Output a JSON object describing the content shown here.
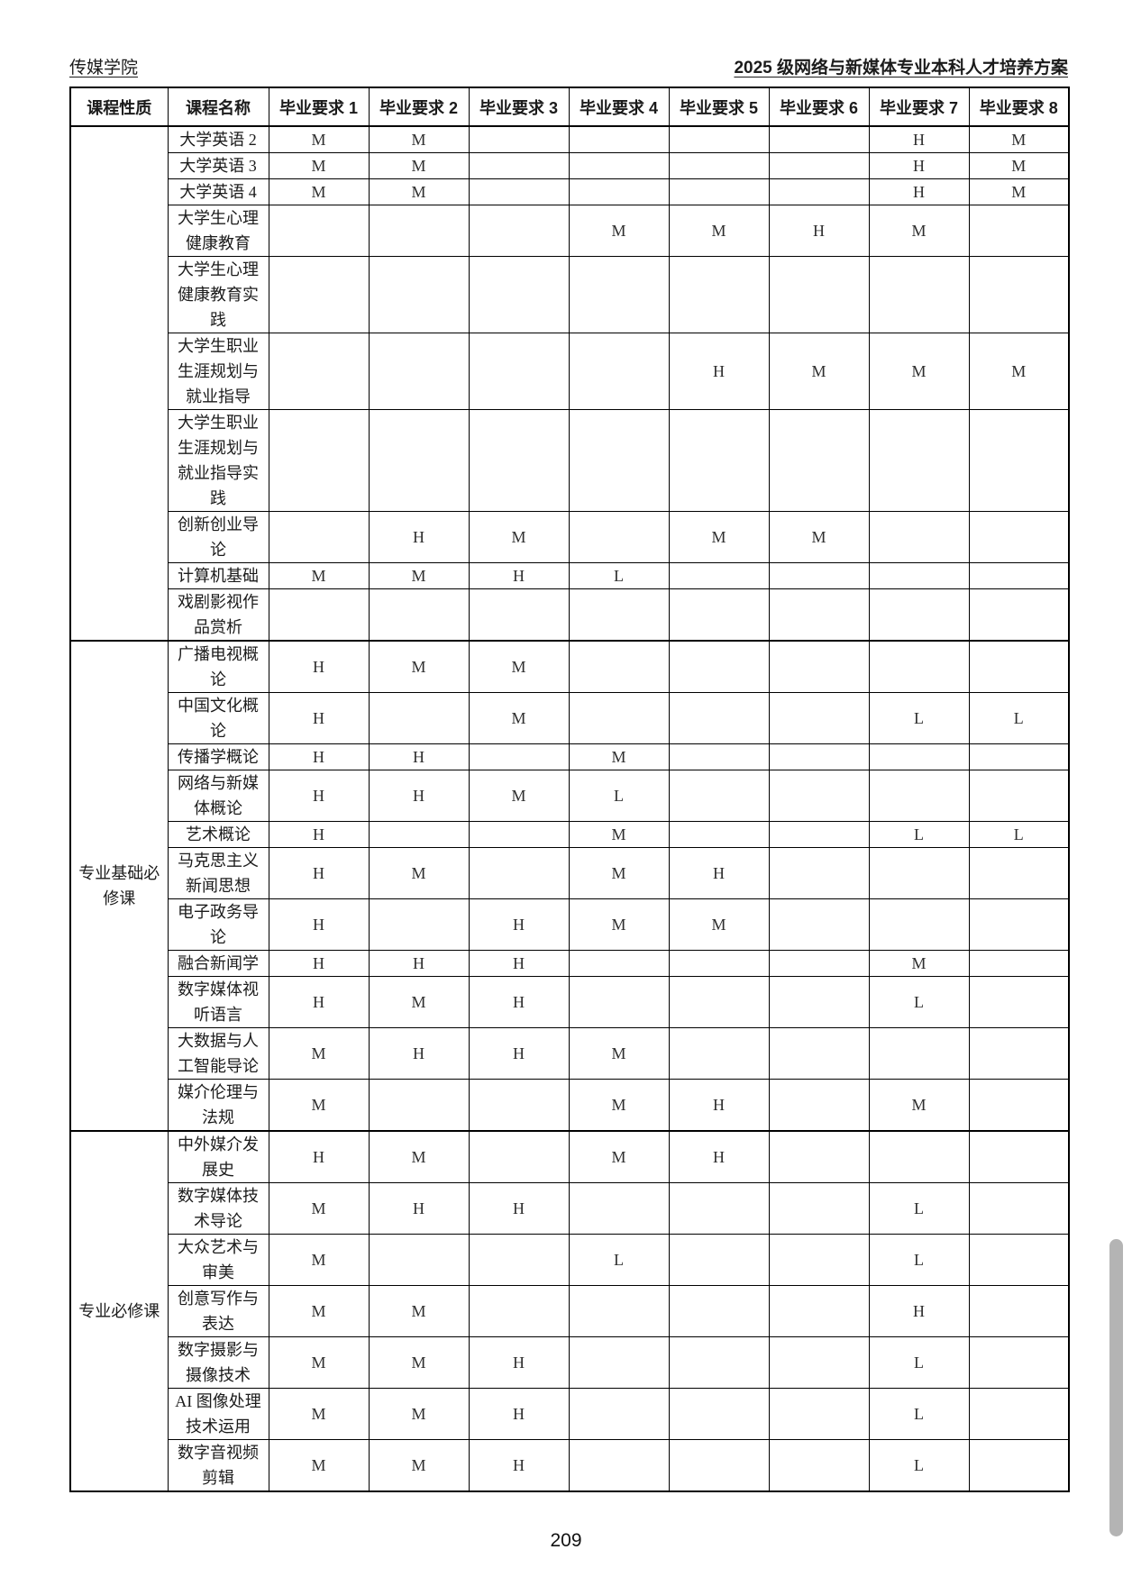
{
  "page": {
    "header_left": "传媒学院",
    "header_right": "2025 级网络与新媒体专业本科人才培养方案",
    "page_number": "209"
  },
  "table": {
    "col_headers": [
      "课程性质",
      "课程名称",
      "毕业要求 1",
      "毕业要求 2",
      "毕业要求 3",
      "毕业要求 4",
      "毕业要求 5",
      "毕业要求 6",
      "毕业要求 7",
      "毕业要求 8"
    ],
    "groups": [
      {
        "nature": "",
        "courses": [
          {
            "name": "大学英语 2",
            "reqs": [
              "M",
              "M",
              "",
              "",
              "",
              "",
              "H",
              "M"
            ]
          },
          {
            "name": "大学英语 3",
            "reqs": [
              "M",
              "M",
              "",
              "",
              "",
              "",
              "H",
              "M"
            ]
          },
          {
            "name": "大学英语 4",
            "reqs": [
              "M",
              "M",
              "",
              "",
              "",
              "",
              "H",
              "M"
            ]
          },
          {
            "name": "大学生心理健康教育",
            "reqs": [
              "",
              "",
              "",
              "M",
              "M",
              "H",
              "M",
              ""
            ]
          },
          {
            "name": "大学生心理健康教育实践",
            "reqs": [
              "",
              "",
              "",
              "",
              "",
              "",
              "",
              ""
            ]
          },
          {
            "name": "大学生职业生涯规划与就业指导",
            "reqs": [
              "",
              "",
              "",
              "",
              "H",
              "M",
              "M",
              "M"
            ]
          },
          {
            "name": "大学生职业生涯规划与就业指导实践",
            "reqs": [
              "",
              "",
              "",
              "",
              "",
              "",
              "",
              ""
            ]
          },
          {
            "name": "创新创业导论",
            "reqs": [
              "",
              "H",
              "M",
              "",
              "M",
              "M",
              "",
              ""
            ]
          },
          {
            "name": "计算机基础",
            "reqs": [
              "M",
              "M",
              "H",
              "L",
              "",
              "",
              "",
              ""
            ]
          },
          {
            "name": "戏剧影视作品赏析",
            "reqs": [
              "",
              "",
              "",
              "",
              "",
              "",
              "",
              ""
            ]
          }
        ]
      },
      {
        "nature": "专业基础必修课",
        "courses": [
          {
            "name": "广播电视概论",
            "reqs": [
              "H",
              "M",
              "M",
              "",
              "",
              "",
              "",
              ""
            ]
          },
          {
            "name": "中国文化概论",
            "reqs": [
              "H",
              "",
              "M",
              "",
              "",
              "",
              "L",
              "L"
            ]
          },
          {
            "name": "传播学概论",
            "reqs": [
              "H",
              "H",
              "",
              "M",
              "",
              "",
              "",
              ""
            ]
          },
          {
            "name": "网络与新媒体概论",
            "reqs": [
              "H",
              "H",
              "M",
              "L",
              "",
              "",
              "",
              ""
            ]
          },
          {
            "name": "艺术概论",
            "reqs": [
              "H",
              "",
              "",
              "M",
              "",
              "",
              "L",
              "L"
            ]
          },
          {
            "name": "马克思主义新闻思想",
            "reqs": [
              "H",
              "M",
              "",
              "M",
              "H",
              "",
              "",
              ""
            ]
          },
          {
            "name": "电子政务导论",
            "reqs": [
              "H",
              "",
              "H",
              "M",
              "M",
              "",
              "",
              ""
            ]
          },
          {
            "name": "融合新闻学",
            "reqs": [
              "H",
              "H",
              "H",
              "",
              "",
              "",
              "M",
              ""
            ]
          },
          {
            "name": "数字媒体视听语言",
            "reqs": [
              "H",
              "M",
              "H",
              "",
              "",
              "",
              "L",
              ""
            ]
          },
          {
            "name": "大数据与人工智能导论",
            "reqs": [
              "M",
              "H",
              "H",
              "M",
              "",
              "",
              "",
              ""
            ]
          },
          {
            "name": "媒介伦理与法规",
            "reqs": [
              "M",
              "",
              "",
              "M",
              "H",
              "",
              "M",
              ""
            ]
          }
        ]
      },
      {
        "nature": "专业必修课",
        "courses": [
          {
            "name": "中外媒介发展史",
            "reqs": [
              "H",
              "M",
              "",
              "M",
              "H",
              "",
              "",
              ""
            ]
          },
          {
            "name": "数字媒体技术导论",
            "reqs": [
              "M",
              "H",
              "H",
              "",
              "",
              "",
              "L",
              ""
            ]
          },
          {
            "name": "大众艺术与审美",
            "reqs": [
              "M",
              "",
              "",
              "L",
              "",
              "",
              "L",
              ""
            ]
          },
          {
            "name": "创意写作与表达",
            "reqs": [
              "M",
              "M",
              "",
              "",
              "",
              "",
              "H",
              ""
            ]
          },
          {
            "name": "数字摄影与摄像技术",
            "reqs": [
              "M",
              "M",
              "H",
              "",
              "",
              "",
              "L",
              ""
            ]
          },
          {
            "name": "AI 图像处理技术运用",
            "reqs": [
              "M",
              "M",
              "H",
              "",
              "",
              "",
              "L",
              ""
            ]
          },
          {
            "name": "数字音视频剪辑",
            "reqs": [
              "M",
              "M",
              "H",
              "",
              "",
              "",
              "L",
              ""
            ]
          }
        ]
      }
    ]
  }
}
